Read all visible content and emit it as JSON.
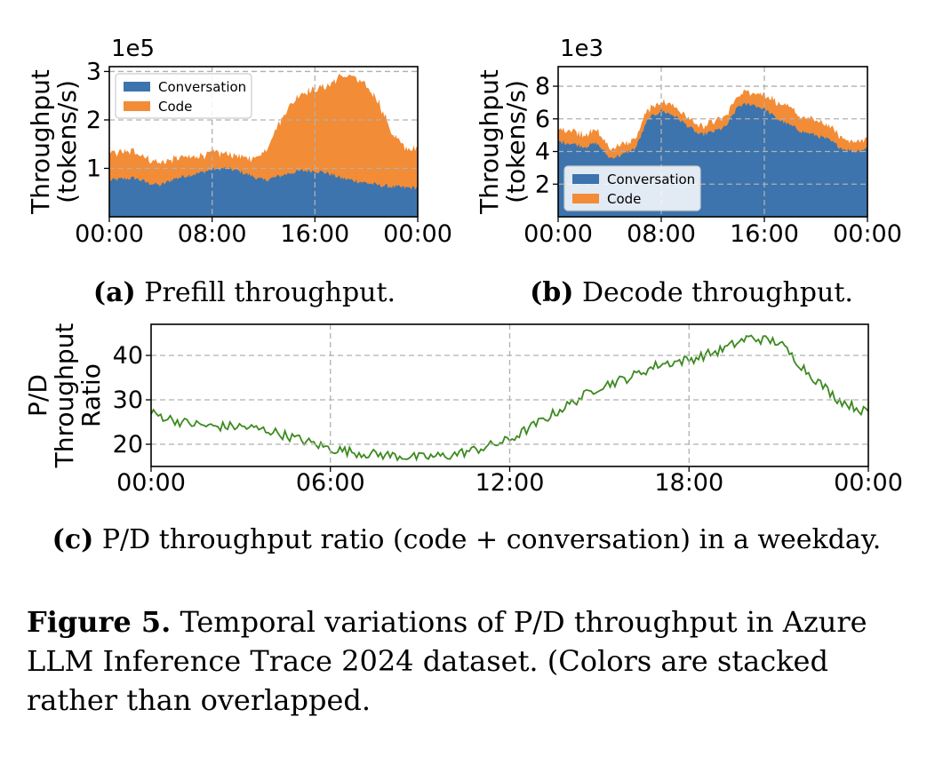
{
  "caption": {
    "label": "Figure 5.",
    "text": "Temporal variations of P/D throughput in Azure LLM Inference Trace 2024 dataset. (Colors are stacked rather than overlapped."
  },
  "colors": {
    "conversation": "#3d74ad",
    "code": "#f28c36",
    "ratio": "#3c8a1f",
    "grid": "#b0b0b0"
  },
  "chart_data": [
    {
      "id": "a",
      "type": "area",
      "stacked": true,
      "subtitle_label": "(a)",
      "subtitle": "Prefill throughput.",
      "ylabel_lines": [
        "Throughput",
        "(tokens/s)"
      ],
      "y_offset_text": "1e5",
      "ylim": [
        0,
        3.1
      ],
      "yticks": [
        1,
        2,
        3
      ],
      "xticks": [
        "00:00",
        "08:00",
        "16:00",
        "00:00"
      ],
      "xlim_hours": [
        0,
        24
      ],
      "grid": true,
      "legend_position": "upper left",
      "legend": [
        "Conversation",
        "Code"
      ],
      "x_hours": [
        0,
        1,
        2,
        3,
        4,
        5,
        6,
        7,
        8,
        9,
        10,
        11,
        12,
        13,
        14,
        15,
        16,
        17,
        18,
        19,
        20,
        21,
        22,
        23,
        24
      ],
      "series": [
        {
          "name": "Conversation",
          "values": [
            0.75,
            0.78,
            0.8,
            0.7,
            0.65,
            0.78,
            0.85,
            0.9,
            0.98,
            1.0,
            0.95,
            0.85,
            0.75,
            0.82,
            0.9,
            0.95,
            0.95,
            0.9,
            0.8,
            0.75,
            0.7,
            0.65,
            0.62,
            0.6,
            0.6
          ]
        },
        {
          "name": "Code",
          "values": [
            0.55,
            0.55,
            0.55,
            0.5,
            0.45,
            0.42,
            0.4,
            0.35,
            0.35,
            0.3,
            0.3,
            0.35,
            0.55,
            1.0,
            1.4,
            1.6,
            1.7,
            1.8,
            2.1,
            2.15,
            2.0,
            1.7,
            1.1,
            0.8,
            0.8
          ]
        }
      ]
    },
    {
      "id": "b",
      "type": "area",
      "stacked": true,
      "subtitle_label": "(b)",
      "subtitle": "Decode throughput.",
      "ylabel_lines": [
        "Throughput",
        "(tokens/s)"
      ],
      "y_offset_text": "1e3",
      "ylim": [
        0,
        9.2
      ],
      "yticks": [
        2,
        4,
        6,
        8
      ],
      "xticks": [
        "00:00",
        "08:00",
        "16:00",
        "00:00"
      ],
      "xlim_hours": [
        0,
        24
      ],
      "grid": true,
      "legend_position": "lower left",
      "legend": [
        "Conversation",
        "Code"
      ],
      "x_hours": [
        0,
        1,
        2,
        3,
        4,
        5,
        6,
        7,
        8,
        9,
        10,
        11,
        12,
        13,
        14,
        15,
        16,
        17,
        18,
        19,
        20,
        21,
        22,
        23,
        24
      ],
      "series": [
        {
          "name": "Conversation",
          "values": [
            4.6,
            4.5,
            4.3,
            4.5,
            3.6,
            3.8,
            4.2,
            6.0,
            6.5,
            6.2,
            5.6,
            5.0,
            5.2,
            5.5,
            6.8,
            6.9,
            6.6,
            6.0,
            5.6,
            5.2,
            5.0,
            4.7,
            4.2,
            4.0,
            4.2
          ]
        },
        {
          "name": "Code",
          "values": [
            0.8,
            0.8,
            0.8,
            0.8,
            0.6,
            0.6,
            0.7,
            0.6,
            0.6,
            0.6,
            0.5,
            0.5,
            0.6,
            0.6,
            0.7,
            0.8,
            0.9,
            1.0,
            1.0,
            0.9,
            0.9,
            0.8,
            0.7,
            0.6,
            0.6
          ]
        }
      ]
    },
    {
      "id": "c",
      "type": "line",
      "subtitle_label": "(c)",
      "subtitle": "P/D throughput ratio (code + conversation) in a weekday.",
      "ylabel_lines": [
        "P/D",
        "Throughput",
        "Ratio"
      ],
      "ylim": [
        15,
        47
      ],
      "yticks": [
        20,
        30,
        40
      ],
      "xticks": [
        "00:00",
        "06:00",
        "12:00",
        "18:00",
        "00:00"
      ],
      "xlim_hours": [
        0,
        24
      ],
      "grid": true,
      "x_hours": [
        0,
        1,
        2,
        3,
        4,
        5,
        6,
        7,
        8,
        9,
        10,
        11,
        12,
        13,
        14,
        15,
        16,
        17,
        18,
        19,
        20,
        21,
        22,
        23,
        24
      ],
      "series": [
        {
          "name": "",
          "values": [
            27,
            25,
            24,
            24,
            23,
            21,
            19,
            18,
            17.5,
            17,
            17.5,
            19,
            21,
            25,
            29,
            33,
            35,
            38,
            39,
            41,
            44,
            43,
            36,
            30,
            27
          ]
        }
      ]
    }
  ]
}
